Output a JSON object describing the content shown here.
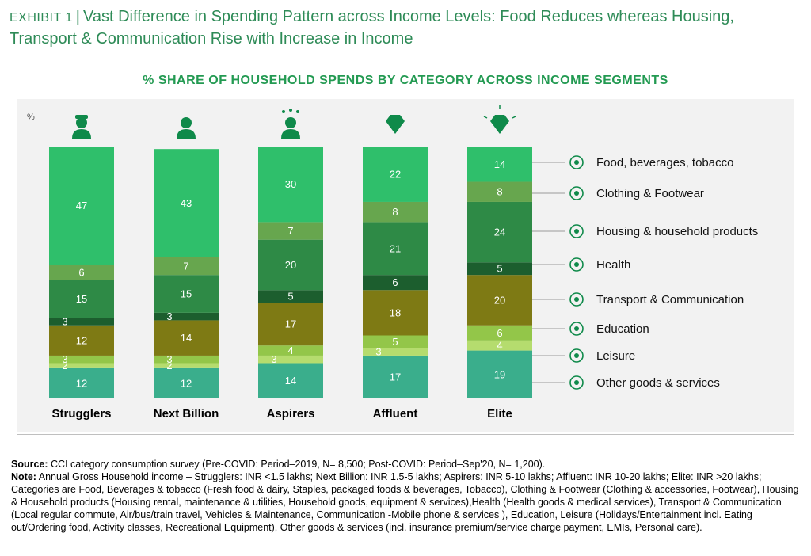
{
  "header": {
    "exhibit_label": "EXHIBIT 1",
    "separator": "|",
    "title": "Vast Difference in Spending Pattern across Income Levels: Food Reduces whereas Housing, Transport & Communication Rise with Increase in Income"
  },
  "chart_data": {
    "type": "bar",
    "stacked": true,
    "title": "% SHARE OF HOUSEHOLD SPENDS BY CATEGORY ACROSS INCOME SEGMENTS",
    "unit_label": "%",
    "categories": [
      "Strugglers",
      "Next Billion",
      "Aspirers",
      "Affluent",
      "Elite"
    ],
    "category_icons": [
      "worker-icon",
      "person-icon",
      "star-person-icon",
      "diamond-icon",
      "sparkle-diamond-icon"
    ],
    "series": [
      {
        "name": "Other goods & services",
        "icon": "goods-icon",
        "color": "#3aae8c",
        "values": [
          12,
          12,
          14,
          17,
          19
        ]
      },
      {
        "name": "Leisure",
        "icon": "building-icon",
        "color": "#b5dc6e",
        "values": [
          2,
          2,
          3,
          3,
          4
        ]
      },
      {
        "name": "Education",
        "icon": "school-icon",
        "color": "#93c649",
        "values": [
          3,
          3,
          4,
          5,
          6
        ]
      },
      {
        "name": "Transport & Communication",
        "icon": "plane-icon",
        "color": "#7e7a14",
        "values": [
          12,
          14,
          17,
          18,
          20
        ]
      },
      {
        "name": "Health",
        "icon": "health-icon",
        "color": "#1c5e2e",
        "values": [
          3,
          3,
          5,
          6,
          5
        ]
      },
      {
        "name": "Housing & household products",
        "icon": "house-icon",
        "color": "#2e8a46",
        "values": [
          15,
          15,
          20,
          21,
          24
        ]
      },
      {
        "name": "Clothing & Footwear",
        "icon": "clothing-icon",
        "color": "#67a64e",
        "values": [
          6,
          7,
          7,
          8,
          8
        ]
      },
      {
        "name": "Food, beverages, tobacco",
        "icon": "food-icon",
        "color": "#2fbf6b",
        "values": [
          47,
          43,
          30,
          22,
          14
        ]
      }
    ],
    "ylim": [
      0,
      100
    ],
    "legend_position": "right"
  },
  "footnote": {
    "source_label": "Source:",
    "source_text": "CCI category consumption survey (Pre-COVID: Period–2019, N= 8,500; Post-COVID: Period–Sep'20, N= 1,200).",
    "note_label": "Note:",
    "note_text": "Annual Gross Household income – Strugglers: INR <1.5 lakhs; Next Billion: INR 1.5-5 lakhs; Aspirers: INR 5-10 lakhs; Affluent: INR 10-20 lakhs; Elite: INR >20 lakhs; Categories are Food, Beverages & tobacco (Fresh food & dairy, Staples, packaged foods & beverages, Tobacco), Clothing & Footwear (Clothing & accessories, Footwear), Housing & Household products (Housing rental, maintenance & utilities, Household goods, equipment & services),Health (Health goods & medical services), Transport & Communication (Local regular commute, Air/bus/train travel, Vehicles & Maintenance, Communication -Mobile phone & services ), Education, Leisure (Holidays/Entertainment incl. Eating out/Ordering food, Activity classes, Recreational Equipment), Other goods & services (incl. insurance premium/service charge payment, EMIs, Personal care)."
  }
}
